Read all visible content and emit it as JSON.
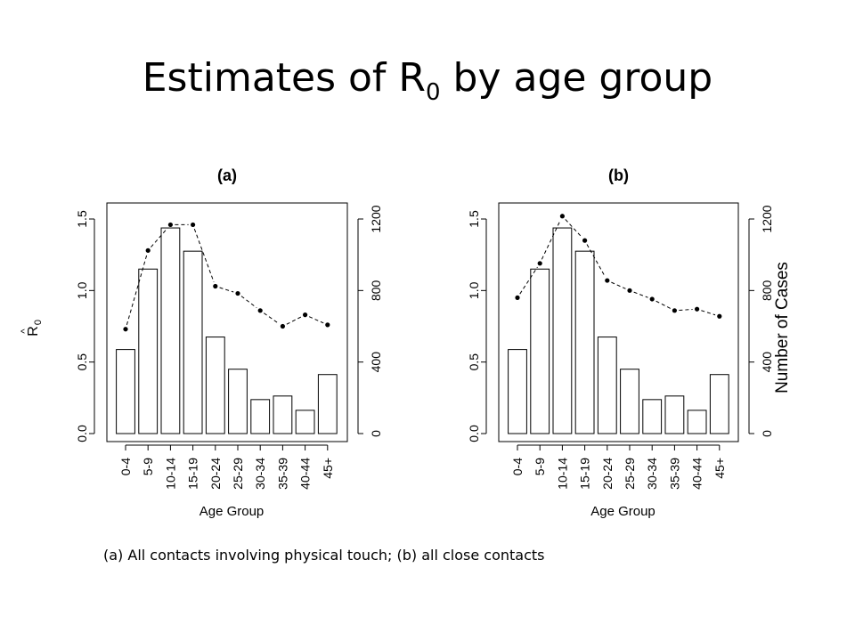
{
  "slide": {
    "title_main": "Estimates of R",
    "title_sub": "0",
    "title_tail": "by age group",
    "caption": "(a) All contacts involving physical touch; (b) all close contacts"
  },
  "chart_data": [
    {
      "type": "bar+line",
      "title": "(a)",
      "xlabel": "Age Group",
      "ylabel_left": "R",
      "ylabel_left_hat": "^",
      "ylabel_left_sub": "0",
      "ylabel_right": "",
      "categories": [
        "0-4",
        "5-9",
        "10-14",
        "15-19",
        "20-24",
        "25-29",
        "30-34",
        "35-39",
        "40-44",
        "45+"
      ],
      "bars_cases": [
        470,
        920,
        1150,
        1020,
        540,
        360,
        190,
        210,
        130,
        330
      ],
      "line_R0": [
        0.73,
        1.28,
        1.46,
        1.46,
        1.03,
        0.98,
        0.86,
        0.75,
        0.83,
        0.76
      ],
      "left_axis": {
        "ticks": [
          "0.0",
          "0.5",
          "1.0",
          "1.5"
        ],
        "ylim": [
          0,
          1.5
        ]
      },
      "right_axis": {
        "ticks": [
          "0",
          "400",
          "800",
          "1200"
        ],
        "ylim": [
          0,
          1200
        ]
      }
    },
    {
      "type": "bar+line",
      "title": "(b)",
      "xlabel": "Age Group",
      "ylabel_left": "",
      "ylabel_right": "Number of Cases",
      "categories": [
        "0-4",
        "5-9",
        "10-14",
        "15-19",
        "20-24",
        "25-29",
        "30-34",
        "35-39",
        "40-44",
        "45+"
      ],
      "bars_cases": [
        470,
        920,
        1150,
        1020,
        540,
        360,
        190,
        210,
        130,
        330
      ],
      "line_R0": [
        0.95,
        1.19,
        1.52,
        1.35,
        1.07,
        1.0,
        0.94,
        0.86,
        0.87,
        0.82
      ],
      "left_axis": {
        "ticks": [
          "0.0",
          "0.5",
          "1.0",
          "1.5"
        ],
        "ylim": [
          0,
          1.5
        ]
      },
      "right_axis": {
        "ticks": [
          "0",
          "400",
          "800",
          "1200"
        ],
        "ylim": [
          0,
          1200
        ]
      }
    }
  ]
}
